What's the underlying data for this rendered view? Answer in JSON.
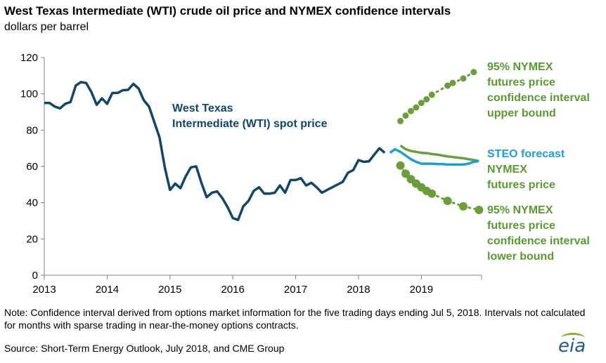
{
  "header": {
    "title": "West Texas Intermediate (WTI) crude oil price and NYMEX confidence intervals",
    "subtitle": "dollars per barrel"
  },
  "footer": {
    "note": "Note: Confidence interval derived from options market information for the five trading days ending Jul 5, 2018. Intervals not calculated for months with sparse trading in near-the-money options contracts.",
    "source": "Source: Short-Term Energy Outlook, July 2018, and CME Group",
    "logo_text": "eia"
  },
  "colors": {
    "wti": "#0e4866",
    "steo": "#1aa0d8",
    "nymex": "#6a9e3a",
    "annotation_green": "#5a9a2f",
    "axis": "#7f7f7f"
  },
  "chart_data": {
    "type": "line",
    "title": "West Texas Intermediate (WTI) crude oil price and NYMEX confidence intervals",
    "ylabel": "dollars per barrel",
    "ylim": [
      0,
      120
    ],
    "yticks": [
      0,
      20,
      40,
      60,
      80,
      100,
      120
    ],
    "xlim": [
      2013,
      2019.958
    ],
    "xticks": [
      "2013",
      "2014",
      "2015",
      "2016",
      "2017",
      "2018",
      "2019"
    ],
    "grid": false,
    "series": [
      {
        "name": "West Texas Intermediate (WTI) spot price",
        "label_lines": [
          "West Texas",
          "Intermediate (WTI) spot price"
        ],
        "style": "line",
        "x": [
          2013.0,
          2013.083,
          2013.167,
          2013.25,
          2013.333,
          2013.417,
          2013.5,
          2013.583,
          2013.667,
          2013.75,
          2013.833,
          2013.917,
          2014.0,
          2014.083,
          2014.167,
          2014.25,
          2014.333,
          2014.417,
          2014.5,
          2014.583,
          2014.667,
          2014.75,
          2014.833,
          2014.917,
          2015.0,
          2015.083,
          2015.167,
          2015.25,
          2015.333,
          2015.417,
          2015.5,
          2015.583,
          2015.667,
          2015.75,
          2015.833,
          2015.917,
          2016.0,
          2016.083,
          2016.167,
          2016.25,
          2016.333,
          2016.417,
          2016.5,
          2016.583,
          2016.667,
          2016.75,
          2016.833,
          2016.917,
          2017.0,
          2017.083,
          2017.167,
          2017.25,
          2017.333,
          2017.417,
          2017.5,
          2017.583,
          2017.667,
          2017.75,
          2017.833,
          2017.917,
          2018.0,
          2018.083,
          2018.167,
          2018.25,
          2018.333,
          2018.417
        ],
        "y": [
          95,
          95,
          93,
          92,
          94.5,
          95.5,
          104.5,
          106.5,
          106,
          101,
          94,
          97.5,
          94.5,
          100.5,
          100.5,
          102,
          102.2,
          105.5,
          103,
          96.5,
          93,
          84.5,
          76,
          59.5,
          47,
          50.5,
          48,
          54.5,
          59.5,
          60,
          51,
          43,
          45.5,
          46.2,
          42.5,
          37.5,
          31.5,
          30.5,
          38,
          41,
          46.5,
          48.5,
          45,
          45,
          45.5,
          49.5,
          45.5,
          52.5,
          52.5,
          53.5,
          49.5,
          51,
          48.5,
          45.5,
          47,
          48.5,
          50,
          51.5,
          56.5,
          58,
          63.5,
          62.5,
          62.8,
          66.5,
          70,
          67.5
        ]
      },
      {
        "name": "STEO forecast",
        "style": "line",
        "x": [
          2018.5,
          2018.583,
          2018.667,
          2018.75,
          2018.833,
          2018.917,
          2019.0,
          2019.083,
          2019.167,
          2019.25,
          2019.333,
          2019.417,
          2019.5,
          2019.583,
          2019.667,
          2019.75,
          2019.833,
          2019.917
        ],
        "y": [
          67.5,
          69.5,
          68,
          66,
          64,
          62.5,
          61.5,
          61.5,
          61.5,
          61.3,
          61.3,
          61,
          61,
          61,
          61,
          61.5,
          62.5,
          63
        ]
      },
      {
        "name": "NYMEX futures price",
        "style": "line",
        "x": [
          2018.667,
          2018.75,
          2018.833,
          2018.917,
          2019.0,
          2019.083,
          2019.167,
          2019.25,
          2019.333,
          2019.417,
          2019.5,
          2019.583,
          2019.667,
          2019.75,
          2019.833,
          2019.917
        ],
        "y": [
          71.5,
          69.5,
          68.5,
          68,
          67.5,
          67.3,
          66.8,
          66.5,
          66,
          65.5,
          65.2,
          64.8,
          64.5,
          64,
          63.5,
          63
        ]
      },
      {
        "name": "95% NYMEX futures price confidence interval upper bound",
        "label_lines": [
          "95% NYMEX",
          "futures price",
          "confidence interval",
          "upper bound"
        ],
        "style": "dots",
        "x": [
          2018.667,
          2018.75,
          2018.833,
          2018.917,
          2019.0,
          2019.083,
          2019.167,
          2019.417,
          2019.5,
          2019.667,
          2019.833
        ],
        "y": [
          85,
          88,
          90.5,
          92.5,
          95,
          97,
          99.5,
          104.5,
          106,
          108.5,
          112
        ]
      },
      {
        "name": "95% NYMEX futures price confidence interval lower bound",
        "label_lines": [
          "95% NYMEX",
          "futures price",
          "confidence interval",
          "lower bound"
        ],
        "style": "dots",
        "x": [
          2018.667,
          2018.75,
          2018.833,
          2018.917,
          2019.0,
          2019.083,
          2019.167,
          2019.417,
          2019.667,
          2019.917
        ],
        "y": [
          60.5,
          56,
          53,
          50.5,
          48.5,
          46.5,
          45,
          41,
          38,
          36
        ]
      }
    ],
    "series_labels": {
      "steo": "STEO forecast",
      "nymex_lines": [
        "NYMEX",
        "futures price"
      ]
    }
  }
}
